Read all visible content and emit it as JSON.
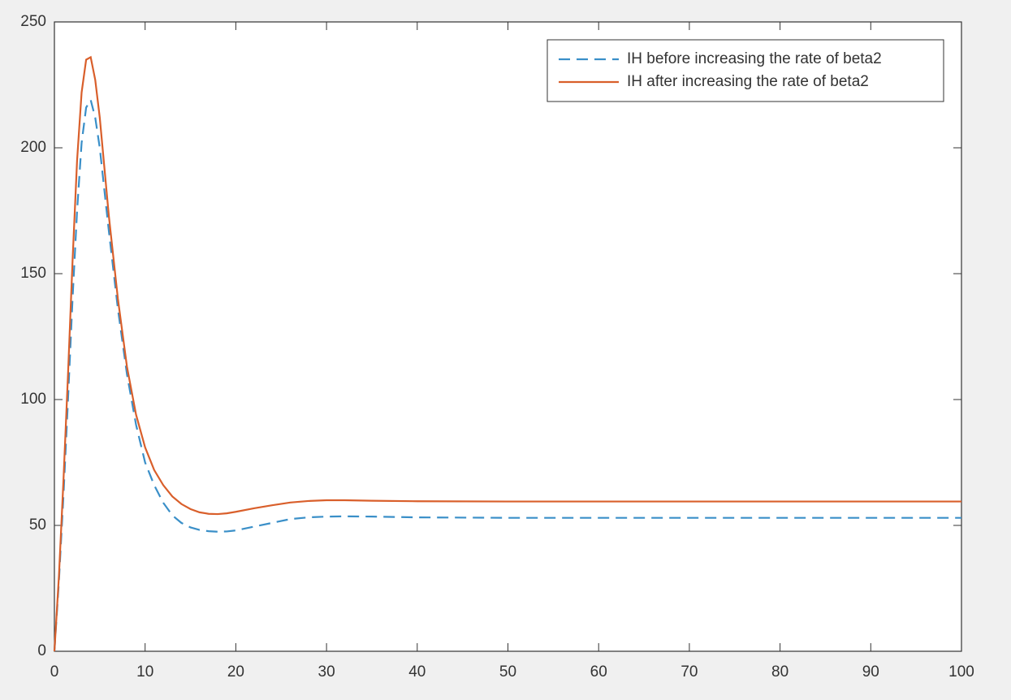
{
  "chart_data": {
    "type": "line",
    "x": [
      0,
      0.5,
      1,
      1.5,
      2,
      2.5,
      3,
      3.5,
      4,
      4.5,
      5,
      6,
      7,
      8,
      9,
      10,
      11,
      12,
      13,
      14,
      15,
      16,
      17,
      18,
      19,
      20,
      22,
      24,
      26,
      28,
      30,
      32,
      35,
      40,
      50,
      60,
      70,
      80,
      90,
      100
    ],
    "series": [
      {
        "name": "IH before increasing the rate of beta2",
        "color": "#3a8fc8",
        "linestyle": "dashed",
        "values": [
          0,
          28,
          62,
          100,
          140,
          175,
          202,
          216,
          219,
          212,
          200,
          167,
          136,
          110,
          90,
          75,
          66,
          59,
          54,
          51,
          49.2,
          48.2,
          47.7,
          47.5,
          47.6,
          48,
          49.5,
          51,
          52.5,
          53.2,
          53.5,
          53.6,
          53.5,
          53.2,
          53,
          53,
          53,
          53,
          53,
          53
        ]
      },
      {
        "name": "IH after increasing the rate of beta2",
        "color": "#d95f2b",
        "linestyle": "solid",
        "values": [
          0,
          30,
          68,
          110,
          155,
          195,
          222,
          235,
          236,
          227,
          212,
          173,
          140,
          113,
          94,
          81,
          72,
          66,
          61.5,
          58.5,
          56.5,
          55.2,
          54.6,
          54.5,
          54.8,
          55.4,
          56.8,
          58,
          59.1,
          59.7,
          60,
          60,
          59.8,
          59.6,
          59.5,
          59.5,
          59.5,
          59.5,
          59.5,
          59.5
        ]
      }
    ],
    "xlim": [
      0,
      100
    ],
    "xticks": [
      0,
      10,
      20,
      30,
      40,
      50,
      60,
      70,
      80,
      90,
      100
    ],
    "ylim": [
      0,
      250
    ],
    "yticks": [
      0,
      50,
      100,
      150,
      200,
      250
    ],
    "grid": false,
    "legend": "northeast"
  }
}
